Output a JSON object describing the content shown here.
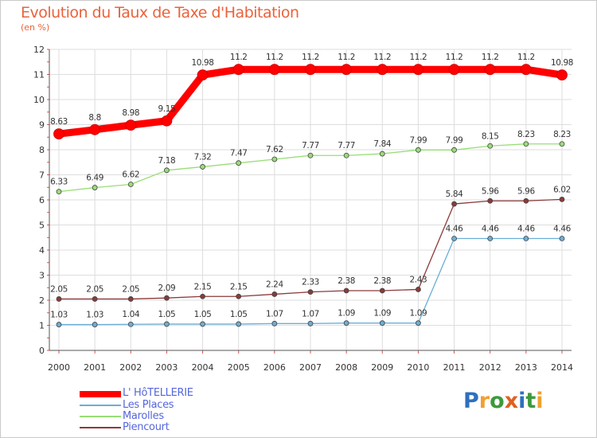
{
  "header": {
    "title": "Evolution du Taux de Taxe d'Habitation",
    "subtitle": "(en %)"
  },
  "logo": {
    "text": "Proxiti",
    "letters": [
      "P",
      "r",
      "o",
      "x",
      "i",
      "t",
      "i"
    ],
    "colors": [
      "#2f6fbf",
      "#f0a030",
      "#3c9a3c",
      "#e06020",
      "#2f6fbf",
      "#3c9a3c",
      "#f0a030"
    ]
  },
  "chart_data": {
    "type": "line",
    "title": "Evolution du Taux de Taxe d'Habitation",
    "ylabel": "(en %)",
    "xlabel": "",
    "x": [
      "2000",
      "2001",
      "2002",
      "2003",
      "2004",
      "2005",
      "2006",
      "2007",
      "2008",
      "2009",
      "2010",
      "2011",
      "2012",
      "2013",
      "2014"
    ],
    "ylim": [
      0,
      12
    ],
    "yticks": [
      "0",
      "1",
      "2",
      "3",
      "4",
      "5",
      "6",
      "7",
      "8",
      "9",
      "10",
      "11",
      "12"
    ],
    "grid": true,
    "legend": "bottom-left",
    "series": [
      {
        "name": "L' HôTELLERIE",
        "color": "#ff0000",
        "values": [
          8.63,
          8.8,
          8.98,
          9.15,
          10.98,
          11.2,
          11.2,
          11.2,
          11.2,
          11.2,
          11.2,
          11.2,
          11.2,
          11.2,
          10.98
        ],
        "labels": [
          "8.63",
          "8.8",
          "8.98",
          "9.15",
          "10.98",
          "11.2",
          "11.2",
          "11.2",
          "11.2",
          "11.2",
          "11.2",
          "11.2",
          "11.2",
          "11.2",
          "10.98"
        ]
      },
      {
        "name": "Les Places",
        "color": "#6aaed6",
        "values": [
          1.03,
          1.03,
          1.04,
          1.05,
          1.05,
          1.05,
          1.07,
          1.07,
          1.09,
          1.09,
          1.09,
          4.46,
          4.46,
          4.46,
          4.46
        ],
        "labels": [
          "1.03",
          "1.03",
          "1.04",
          "1.05",
          "1.05",
          "1.05",
          "1.07",
          "1.07",
          "1.09",
          "1.09",
          "1.09",
          "4.46",
          "4.46",
          "4.46",
          "4.46"
        ]
      },
      {
        "name": "Marolles",
        "color": "#99dd77",
        "values": [
          6.33,
          6.49,
          6.62,
          7.18,
          7.32,
          7.47,
          7.62,
          7.77,
          7.77,
          7.84,
          7.99,
          7.99,
          8.15,
          8.23,
          8.23
        ],
        "labels": [
          "6.33",
          "6.49",
          "6.62",
          "7.18",
          "7.32",
          "7.47",
          "7.62",
          "7.77",
          "7.77",
          "7.84",
          "7.99",
          "7.99",
          "8.15",
          "8.23",
          "8.23"
        ]
      },
      {
        "name": "Piencourt",
        "color": "#8b3a3a",
        "values": [
          2.05,
          2.05,
          2.05,
          2.09,
          2.15,
          2.15,
          2.24,
          2.33,
          2.38,
          2.38,
          2.43,
          5.84,
          5.96,
          5.96,
          6.02
        ],
        "labels": [
          "2.05",
          "2.05",
          "2.05",
          "2.09",
          "2.15",
          "2.15",
          "2.24",
          "2.33",
          "2.38",
          "2.38",
          "2.43",
          "5.84",
          "5.96",
          "5.96",
          "6.02"
        ]
      }
    ]
  }
}
